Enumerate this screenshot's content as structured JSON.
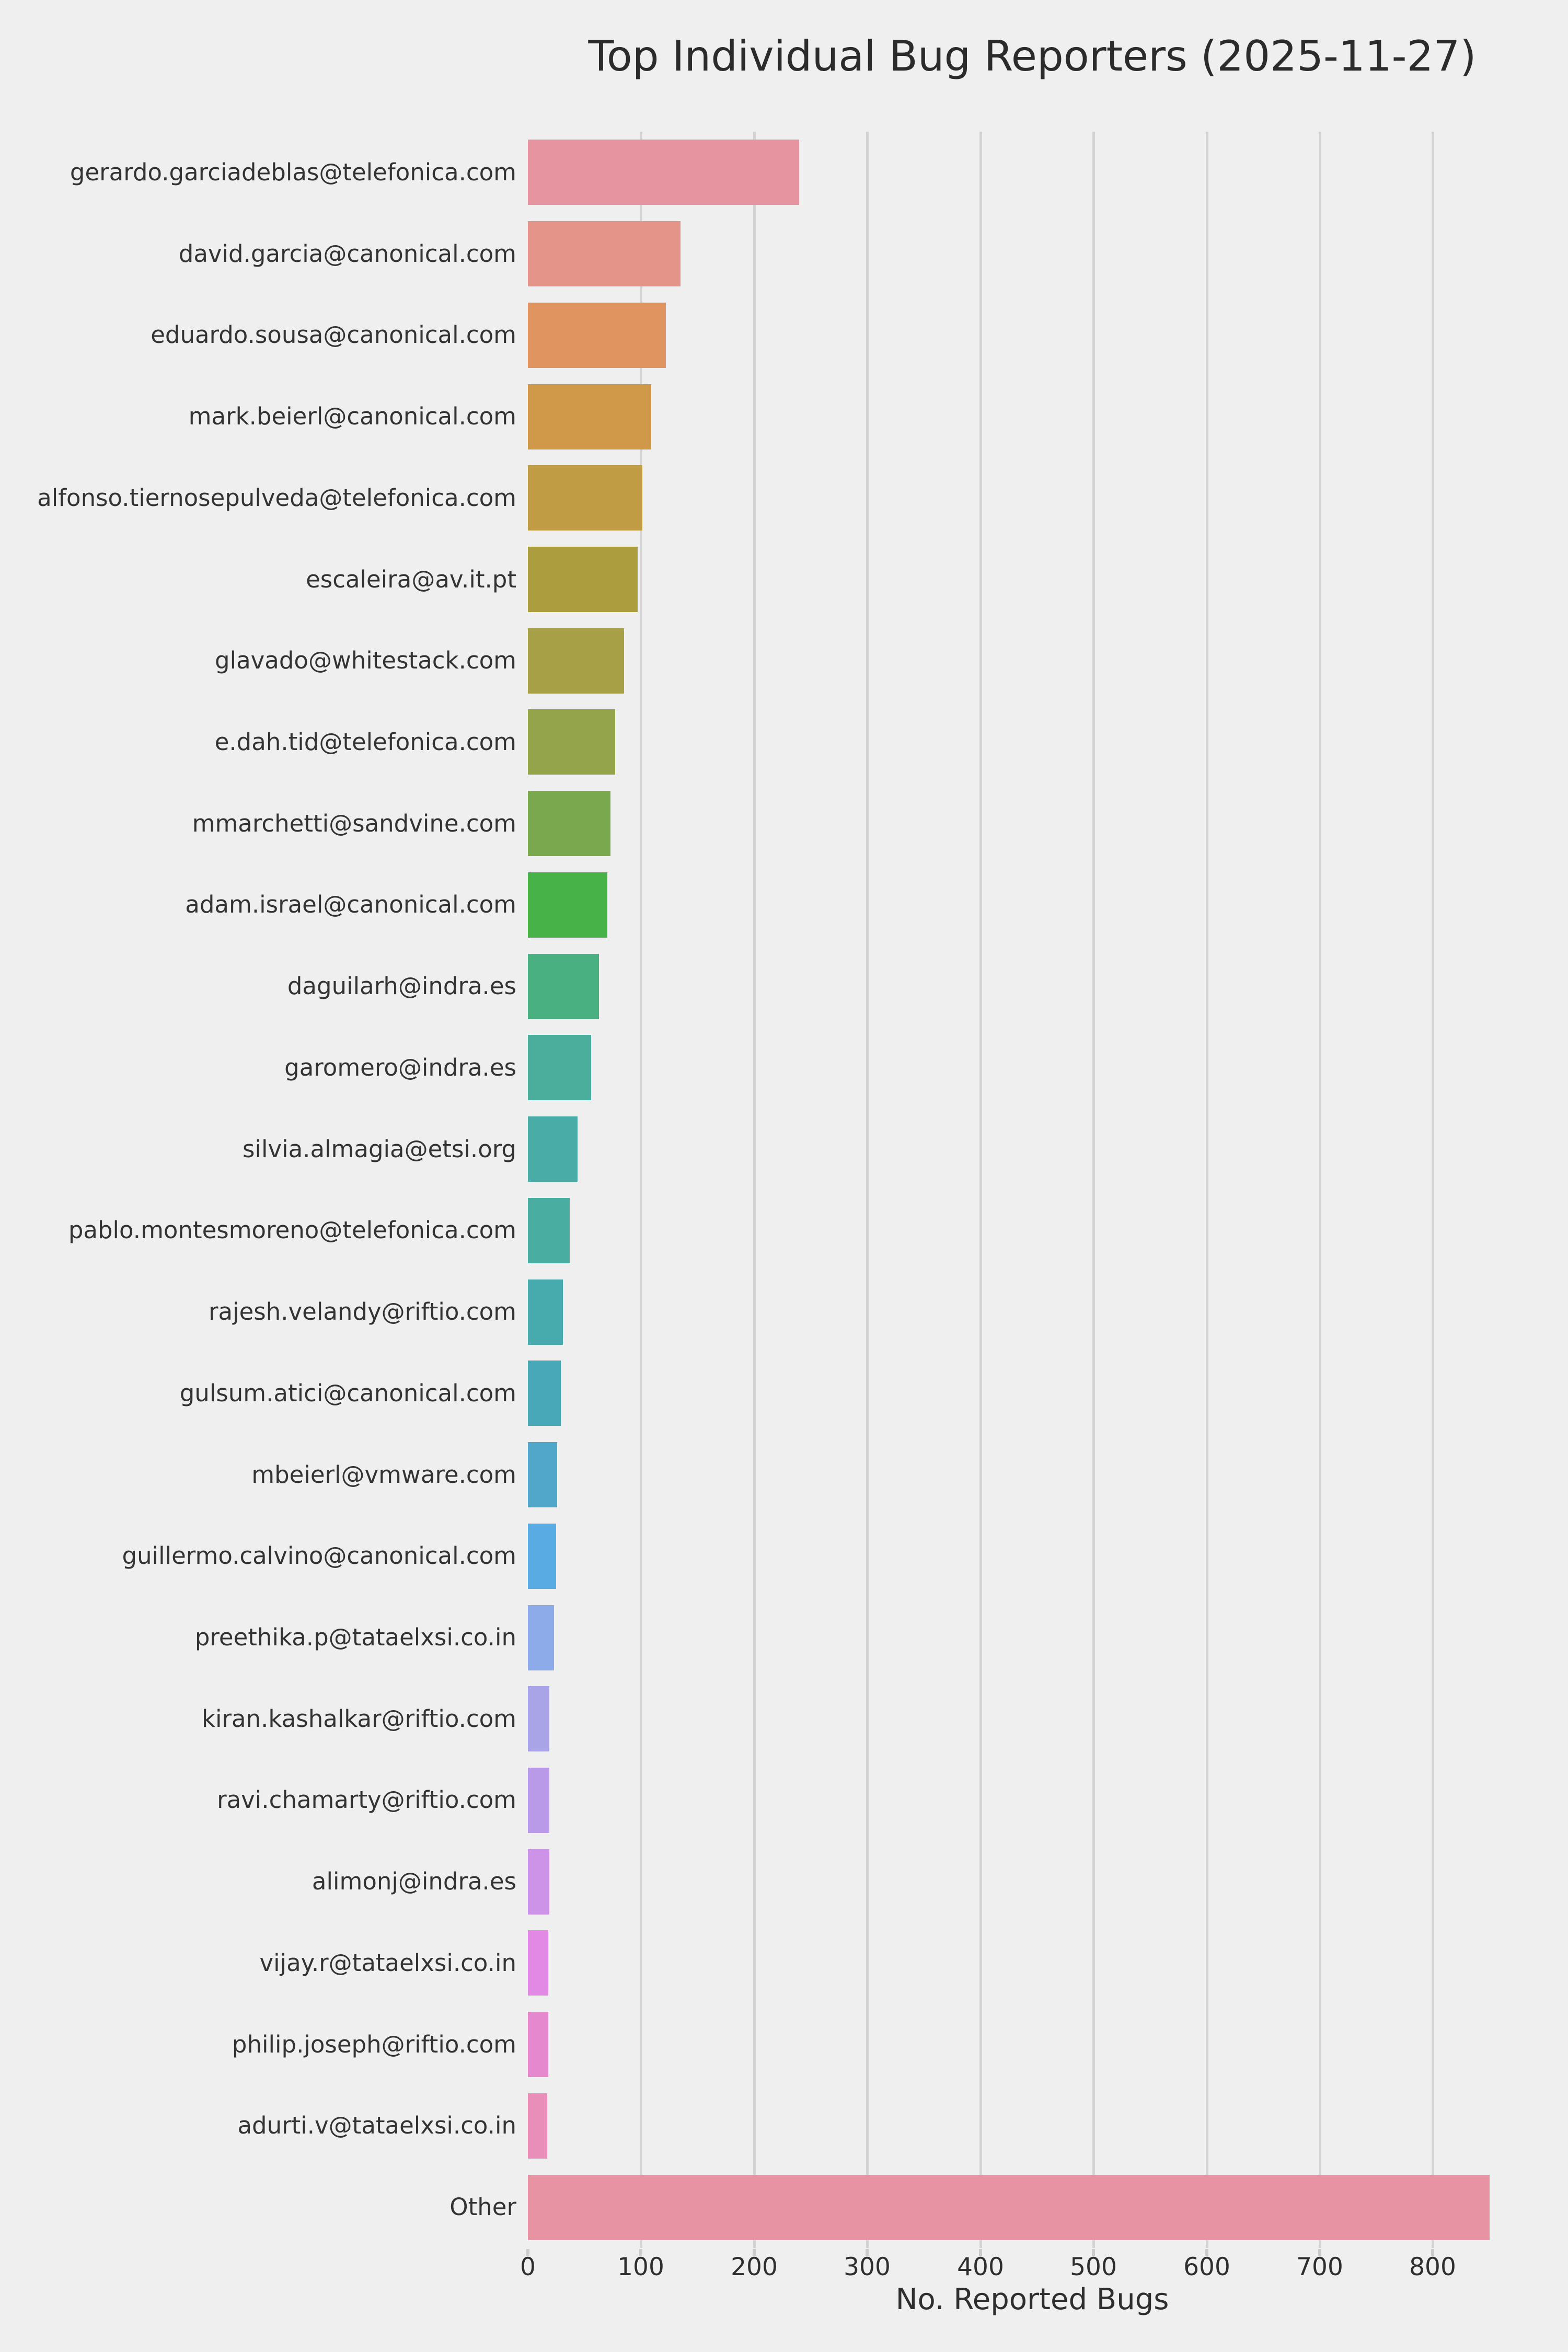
{
  "style": {
    "background": "#efefef",
    "grid_color": "#d3d3d3",
    "tick_color": "#cccccc",
    "title_color": "#2b2b2b",
    "label_color": "#333333",
    "tick_label_color": "#2e2e2e"
  },
  "chart_data": {
    "type": "bar",
    "orientation": "horizontal",
    "title": "Top Individual Bug Reporters (2025-11-27)",
    "xlabel": "No. Reported Bugs",
    "ylabel": "",
    "xlim": [
      0,
      894
    ],
    "xticks": [
      0,
      100,
      200,
      300,
      400,
      500,
      600,
      700,
      800
    ],
    "grid": true,
    "legend": false,
    "categories": [
      "gerardo.garciadeblas@telefonica.com",
      "david.garcia@canonical.com",
      "eduardo.sousa@canonical.com",
      "mark.beierl@canonical.com",
      "alfonso.tiernosepulveda@telefonica.com",
      "escaleira@av.it.pt",
      "glavado@whitestack.com",
      "e.dah.tid@telefonica.com",
      "mmarchetti@sandvine.com",
      "adam.israel@canonical.com",
      "daguilarh@indra.es",
      "garomero@indra.es",
      "silvia.almagia@etsi.org",
      "pablo.montesmoreno@telefonica.com",
      "rajesh.velandy@riftio.com",
      "gulsum.atici@canonical.com",
      "mbeierl@vmware.com",
      "guillermo.calvino@canonical.com",
      "preethika.p@tataelxsi.co.in",
      "kiran.kashalkar@riftio.com",
      "ravi.chamarty@riftio.com",
      "alimonj@indra.es",
      "vijay.r@tataelxsi.co.in",
      "philip.joseph@riftio.com",
      "adurti.v@tataelxsi.co.in",
      "Other"
    ],
    "values": [
      240,
      135,
      122,
      109,
      101,
      97,
      85,
      77,
      73,
      70,
      63,
      56,
      44,
      37,
      31,
      29,
      26,
      25,
      23,
      19,
      19,
      19,
      18,
      18,
      17,
      850
    ],
    "bar_colors": [
      "#e794a1",
      "#e5948a",
      "#e09560",
      "#d0994a",
      "#c09c44",
      "#ac9e3f",
      "#a8a046",
      "#93a44b",
      "#7aa84f",
      "#47b247",
      "#49b082",
      "#4bae9c",
      "#4aaca6",
      "#49ada1",
      "#47aaad",
      "#49a8b8",
      "#51a7ca",
      "#58abe3",
      "#8cabe8",
      "#a9a3e8",
      "#b89ae8",
      "#cc93e8",
      "#e289e5",
      "#e688cd",
      "#e98eb9",
      "#e893a4"
    ]
  }
}
